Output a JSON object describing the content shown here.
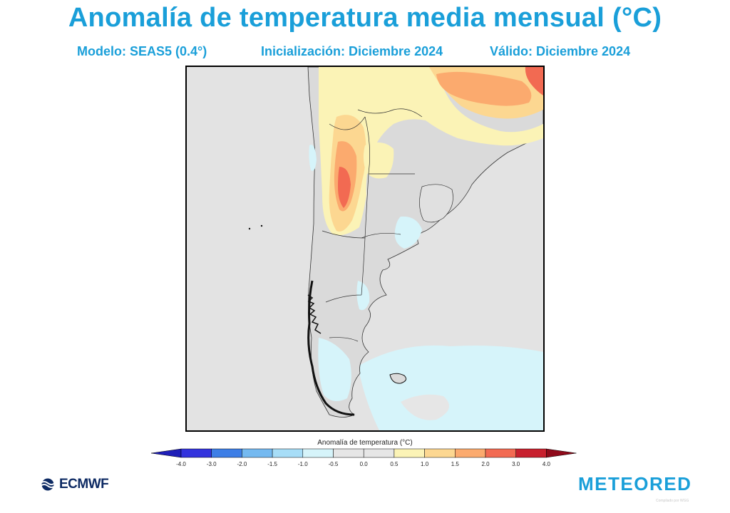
{
  "title": "Anomalía de temperatura media mensual (°C)",
  "model": "Modelo: SEAS5 (0.4°)",
  "initialization": "Inicialización: Diciembre 2024",
  "valid": "Válido: Diciembre 2024",
  "colorbar": {
    "title": "Anomalía de temperatura (°C)",
    "ticks": [
      "-4.0",
      "-3.0",
      "-2.0",
      "-1.5",
      "-1.0",
      "-0.5",
      "0.0",
      "0.5",
      "1.0",
      "1.5",
      "2.0",
      "3.0",
      "4.0"
    ],
    "colors": [
      "#3333dd",
      "#3d7ee6",
      "#74b9f0",
      "#a7ddf7",
      "#d6f4fa",
      "#e6e6e6",
      "#e6e6e6",
      "#fbf3b6",
      "#fcd791",
      "#fbaa6e",
      "#f26a52",
      "#c8202e"
    ],
    "low_end_color": "#1f1fb8",
    "high_end_color": "#8f0a1a"
  },
  "logos": {
    "left": "ECMWF",
    "right": "METEORED"
  },
  "credit": "Compilado por WGG"
}
